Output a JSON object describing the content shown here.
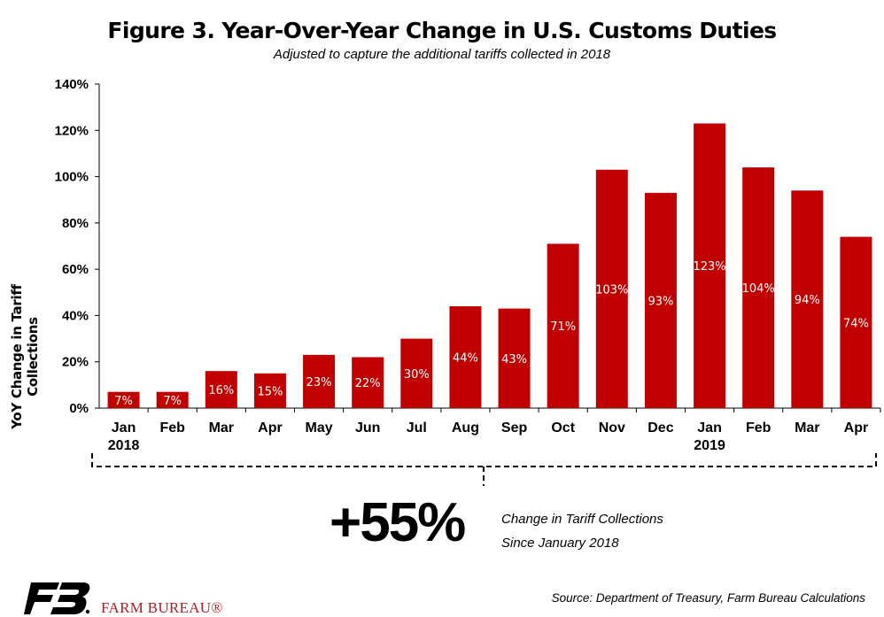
{
  "header": {
    "title": "Figure 3. Year-Over-Year Change in U.S. Customs Duties",
    "subtitle": "Adjusted to capture the additional tariffs collected in 2018"
  },
  "chart_data": {
    "type": "bar",
    "title": "Figure 3. Year-Over-Year Change in U.S. Customs Duties",
    "subtitle": "Adjusted to capture the additional tariffs collected in 2018",
    "ylabel": "YoY Change in Tariff Collections",
    "xlabel": "",
    "categories": [
      "Jan",
      "Feb",
      "Mar",
      "Apr",
      "May",
      "Jun",
      "Jul",
      "Aug",
      "Sep",
      "Oct",
      "Nov",
      "Dec",
      "Jan",
      "Feb",
      "Mar",
      "Apr"
    ],
    "year_labels": [
      {
        "index": 0,
        "label": "2018"
      },
      {
        "index": 12,
        "label": "2019"
      }
    ],
    "values": [
      7,
      7,
      16,
      15,
      23,
      22,
      30,
      44,
      43,
      71,
      103,
      93,
      123,
      104,
      94,
      74
    ],
    "data_labels": [
      "7%",
      "7%",
      "16%",
      "15%",
      "23%",
      "22%",
      "30%",
      "44%",
      "43%",
      "71%",
      "103%",
      "93%",
      "123%",
      "104%",
      "94%",
      "74%"
    ],
    "ylim": [
      0,
      140
    ],
    "yticks": [
      0,
      20,
      40,
      60,
      80,
      100,
      120,
      140
    ],
    "ytick_labels": [
      "0%",
      "20%",
      "40%",
      "60%",
      "80%",
      "100%",
      "120%",
      "140%"
    ],
    "grid": false,
    "legend": "none",
    "bar_color": "#c00000"
  },
  "annotation": {
    "value": "+55%",
    "line1": "Change in Tariff Collections",
    "line2": "Since January 2018"
  },
  "footer": {
    "source": "Source: Department of Treasury, Farm Bureau Calculations",
    "brand": "FARM BUREAU®",
    "logo_icon": "farm-bureau-fb-logo-icon",
    "brand_color": "#b01e23"
  }
}
